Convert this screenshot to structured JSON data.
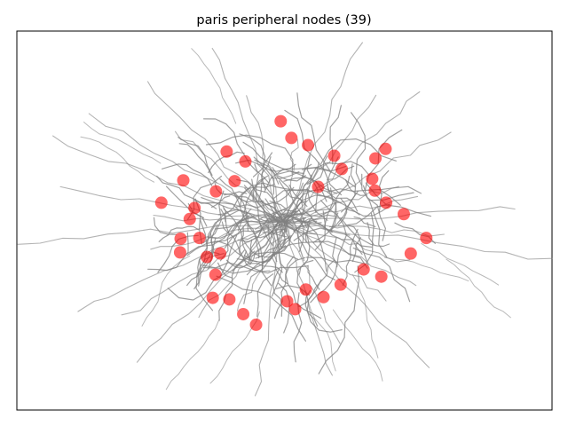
{
  "chart_data": {
    "type": "scatter",
    "title": "paris peripheral nodes (39)",
    "xlabel": "",
    "ylabel": "",
    "axes_ticks": false,
    "grid": false,
    "edge_color": "#808080",
    "node_color": "#ff0000",
    "node_alpha": 0.6,
    "xlim": [
      0,
      100
    ],
    "ylim": [
      0,
      100
    ],
    "nodes": [
      {
        "x": 49.3,
        "y": 76.2
      },
      {
        "x": 51.3,
        "y": 71.8
      },
      {
        "x": 54.4,
        "y": 69.9
      },
      {
        "x": 39.2,
        "y": 68.2
      },
      {
        "x": 42.7,
        "y": 65.6
      },
      {
        "x": 68.9,
        "y": 68.9
      },
      {
        "x": 67.0,
        "y": 66.4
      },
      {
        "x": 59.3,
        "y": 67.1
      },
      {
        "x": 60.7,
        "y": 63.6
      },
      {
        "x": 31.1,
        "y": 60.6
      },
      {
        "x": 40.7,
        "y": 60.4
      },
      {
        "x": 37.2,
        "y": 57.7
      },
      {
        "x": 56.3,
        "y": 58.9
      },
      {
        "x": 66.4,
        "y": 61.0
      },
      {
        "x": 66.9,
        "y": 57.9
      },
      {
        "x": 27.0,
        "y": 54.7
      },
      {
        "x": 33.2,
        "y": 53.3
      },
      {
        "x": 32.3,
        "y": 50.4
      },
      {
        "x": 69.0,
        "y": 54.7
      },
      {
        "x": 72.3,
        "y": 51.7
      },
      {
        "x": 30.6,
        "y": 45.2
      },
      {
        "x": 34.1,
        "y": 45.4
      },
      {
        "x": 38.0,
        "y": 41.3
      },
      {
        "x": 35.5,
        "y": 40.4
      },
      {
        "x": 30.5,
        "y": 41.6
      },
      {
        "x": 76.5,
        "y": 45.4
      },
      {
        "x": 73.6,
        "y": 41.3
      },
      {
        "x": 37.1,
        "y": 35.7
      },
      {
        "x": 68.1,
        "y": 35.2
      },
      {
        "x": 64.8,
        "y": 37.1
      },
      {
        "x": 60.5,
        "y": 33.1
      },
      {
        "x": 57.3,
        "y": 29.8
      },
      {
        "x": 54.0,
        "y": 31.8
      },
      {
        "x": 50.5,
        "y": 28.7
      },
      {
        "x": 36.6,
        "y": 29.6
      },
      {
        "x": 39.7,
        "y": 29.2
      },
      {
        "x": 42.3,
        "y": 25.3
      },
      {
        "x": 44.7,
        "y": 22.5
      },
      {
        "x": 52.0,
        "y": 26.6
      }
    ]
  }
}
